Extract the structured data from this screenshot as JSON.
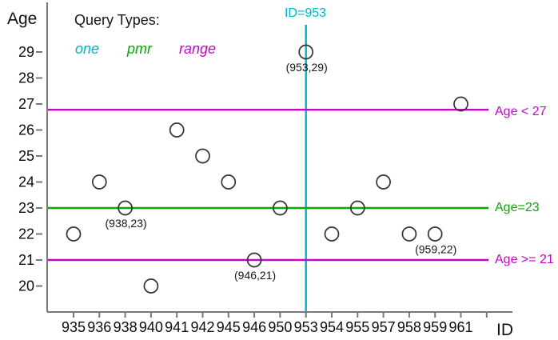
{
  "chart_data": {
    "type": "scatter",
    "title": "",
    "xlabel": "ID",
    "ylabel": "Age",
    "x_tick_labels": [
      "935",
      "936",
      "938",
      "940",
      "941",
      "942",
      "945",
      "946",
      "950",
      "953",
      "954",
      "955",
      "957",
      "958",
      "959",
      "961",
      ""
    ],
    "y_tick_values": [
      20,
      21,
      22,
      23,
      24,
      25,
      26,
      27,
      28,
      29
    ],
    "ylim": [
      20,
      29
    ],
    "grid": false,
    "points": [
      {
        "id": "935",
        "age": 22
      },
      {
        "id": "936",
        "age": 24
      },
      {
        "id": "938",
        "age": 23
      },
      {
        "id": "940",
        "age": 20
      },
      {
        "id": "941",
        "age": 26
      },
      {
        "id": "942",
        "age": 25
      },
      {
        "id": "945",
        "age": 24
      },
      {
        "id": "946",
        "age": 21
      },
      {
        "id": "950",
        "age": 23
      },
      {
        "id": "953",
        "age": 29
      },
      {
        "id": "954",
        "age": 22
      },
      {
        "id": "955",
        "age": 23
      },
      {
        "id": "957",
        "age": 24
      },
      {
        "id": "958",
        "age": 22
      },
      {
        "id": "959",
        "age": 22
      },
      {
        "id": "961",
        "age": 27
      }
    ],
    "point_labels": [
      {
        "text": "(938,23)",
        "id": "938",
        "age": 23
      },
      {
        "text": "(946,21)",
        "id": "946",
        "age": 21
      },
      {
        "text": "(953,29)",
        "id": "953",
        "age": 29
      },
      {
        "text": "(959,22)",
        "id": "959",
        "age": 22
      }
    ],
    "legend": {
      "title": "Query Types:",
      "items": [
        {
          "label": "one",
          "color": "#00b3c6"
        },
        {
          "label": "pmr",
          "color": "#0aa50a"
        },
        {
          "label": "range",
          "color": "#c605c6"
        }
      ]
    },
    "query_lines": [
      {
        "name": "one-query-line",
        "label": "ID=953",
        "orientation": "vertical",
        "at_id": "953",
        "color": "#00b3c6"
      },
      {
        "name": "range-upper-query-line",
        "label": "Age < 27",
        "orientation": "horizontal",
        "at_age": 26.78,
        "color": "#c605c6"
      },
      {
        "name": "pmr-query-line",
        "label": "Age=23",
        "orientation": "horizontal",
        "at_age": 23,
        "color": "#0aa50a"
      },
      {
        "name": "range-lower-query-line",
        "label": "Age >= 21",
        "orientation": "horizontal",
        "at_age": 21,
        "color": "#c605c6"
      }
    ],
    "marker": {
      "shape": "circle",
      "fill": "none",
      "stroke": "#333333"
    },
    "axis_color": "#787878",
    "text_color": "#0c0c0c"
  }
}
